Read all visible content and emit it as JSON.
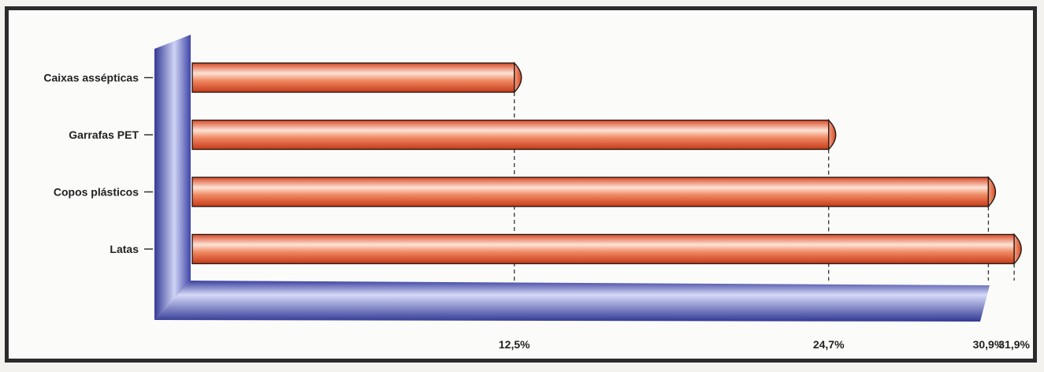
{
  "chart_data": {
    "type": "bar",
    "orientation": "horizontal",
    "categories": [
      "Caixas assépticas",
      "Garrafas PET",
      "Copos plásticos",
      "Latas"
    ],
    "values": [
      12.5,
      24.7,
      30.9,
      31.9
    ],
    "value_labels": [
      "12,5%",
      "24,7%",
      "30,9%",
      "31,9%"
    ],
    "title": "",
    "xlabel": "",
    "ylabel": "",
    "xlim": [
      0,
      37.2
    ],
    "grid": false,
    "legend": "none",
    "colors": {
      "bar": "#e8603a",
      "bar_highlight": "#fde3d6",
      "axis": "#3a3f9c",
      "axis_light": "#c9cdf2"
    }
  }
}
